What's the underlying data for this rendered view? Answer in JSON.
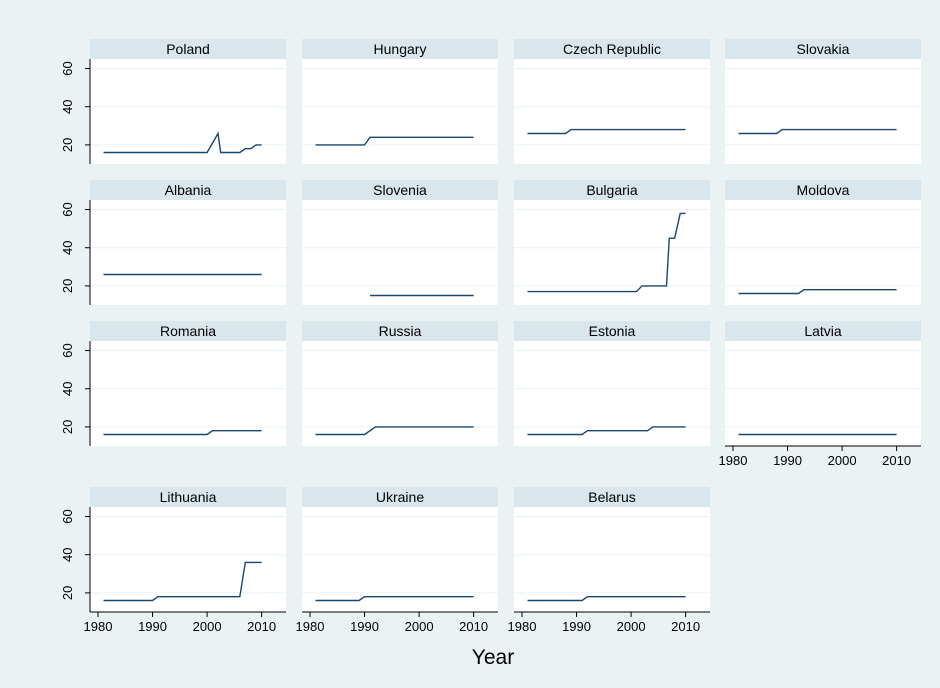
{
  "chart_data": {
    "type": "line",
    "layout": "small-multiples",
    "xlabel": "Year",
    "ylabel": "",
    "xlim": [
      1980,
      2013
    ],
    "ylim": [
      10,
      65
    ],
    "xticks": [
      1980,
      1990,
      2000,
      2010
    ],
    "yticks": [
      20,
      40,
      60
    ],
    "grid": true,
    "line_color": "#1a476f",
    "strip_color": "#d9e6eb",
    "background_color": "#eaf2f3",
    "panels": [
      {
        "name": "Poland",
        "steps": [
          [
            1981,
            16
          ],
          [
            2000,
            16
          ],
          [
            2002,
            26
          ],
          [
            2002.5,
            16
          ],
          [
            2006,
            16
          ],
          [
            2007,
            18
          ],
          [
            2008,
            18
          ],
          [
            2009,
            20
          ],
          [
            2010,
            20
          ]
        ]
      },
      {
        "name": "Hungary",
        "steps": [
          [
            1981,
            20
          ],
          [
            1990,
            20
          ],
          [
            1991,
            24
          ],
          [
            2010,
            24
          ]
        ]
      },
      {
        "name": "Czech Republic",
        "steps": [
          [
            1981,
            26
          ],
          [
            1988,
            26
          ],
          [
            1989,
            28
          ],
          [
            2010,
            28
          ]
        ]
      },
      {
        "name": "Slovakia",
        "steps": [
          [
            1981,
            26
          ],
          [
            1988,
            26
          ],
          [
            1989,
            28
          ],
          [
            2010,
            28
          ]
        ]
      },
      {
        "name": "Albania",
        "steps": [
          [
            1981,
            26
          ],
          [
            2010,
            26
          ]
        ]
      },
      {
        "name": "Slovenia",
        "steps": [
          [
            1991,
            15
          ],
          [
            2010,
            15
          ]
        ]
      },
      {
        "name": "Bulgaria",
        "steps": [
          [
            1981,
            17
          ],
          [
            2001,
            17
          ],
          [
            2002,
            20
          ],
          [
            2006.5,
            20
          ],
          [
            2007,
            45
          ],
          [
            2008,
            45
          ],
          [
            2009,
            58
          ],
          [
            2010,
            58
          ]
        ]
      },
      {
        "name": "Moldova",
        "steps": [
          [
            1981,
            16
          ],
          [
            1992,
            16
          ],
          [
            1993,
            18
          ],
          [
            2010,
            18
          ]
        ]
      },
      {
        "name": "Romania",
        "steps": [
          [
            1981,
            16
          ],
          [
            2000,
            16
          ],
          [
            2001,
            18
          ],
          [
            2010,
            18
          ]
        ]
      },
      {
        "name": "Russia",
        "steps": [
          [
            1981,
            16
          ],
          [
            1990,
            16
          ],
          [
            1992,
            20
          ],
          [
            2010,
            20
          ]
        ]
      },
      {
        "name": "Estonia",
        "steps": [
          [
            1981,
            16
          ],
          [
            1991,
            16
          ],
          [
            1992,
            18
          ],
          [
            2003,
            18
          ],
          [
            2004,
            20
          ],
          [
            2010,
            20
          ]
        ]
      },
      {
        "name": "Latvia",
        "steps": [
          [
            1981,
            16
          ],
          [
            2010,
            16
          ]
        ]
      },
      {
        "name": "Lithuania",
        "steps": [
          [
            1981,
            16
          ],
          [
            1990,
            16
          ],
          [
            1991,
            18
          ],
          [
            2006,
            18
          ],
          [
            2007,
            36
          ],
          [
            2010,
            36
          ]
        ]
      },
      {
        "name": "Ukraine",
        "steps": [
          [
            1981,
            16
          ],
          [
            1989,
            16
          ],
          [
            1990,
            18
          ],
          [
            2010,
            18
          ]
        ]
      },
      {
        "name": "Belarus",
        "steps": [
          [
            1981,
            16
          ],
          [
            1991,
            16
          ],
          [
            1992,
            18
          ],
          [
            2010,
            18
          ]
        ]
      }
    ]
  }
}
